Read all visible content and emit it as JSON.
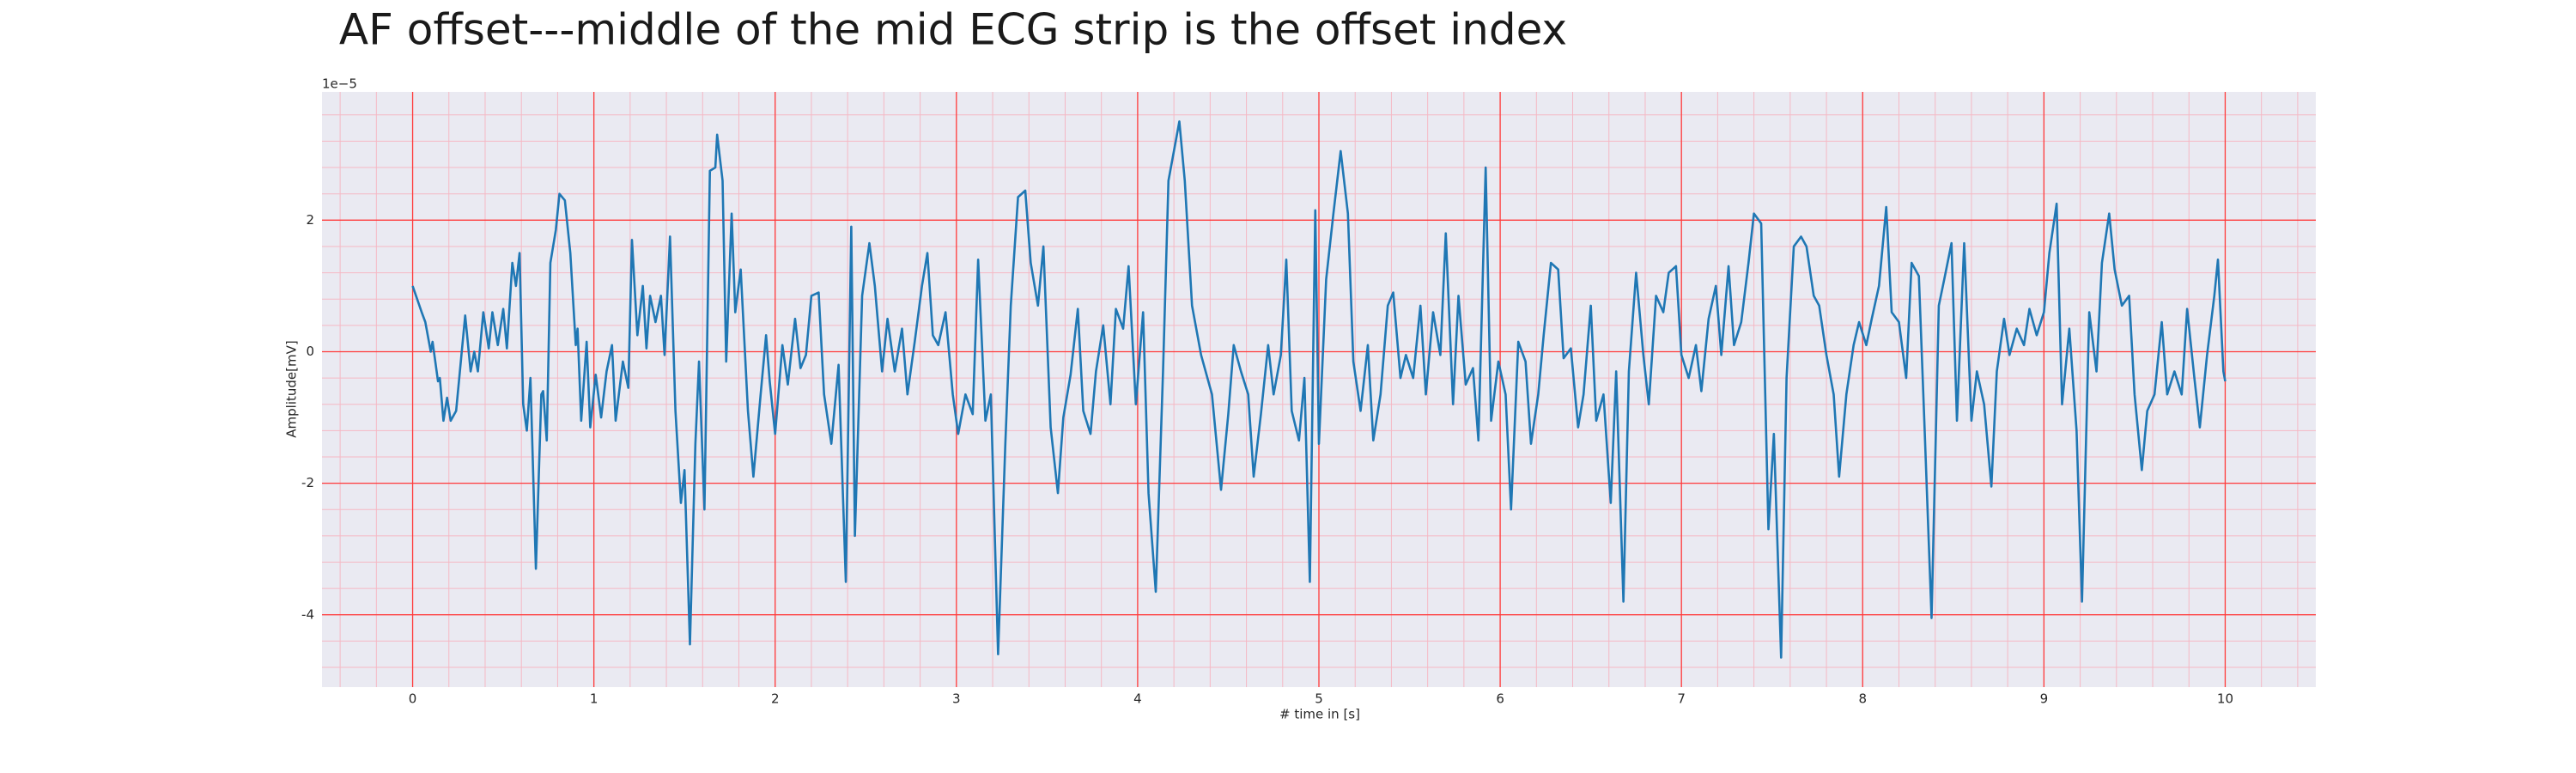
{
  "chart_data": {
    "type": "line",
    "title": "AF offset---middle of the mid ECG strip is the offset index",
    "x_label": "# time in [s]",
    "y_label": "Amplitude[mV]",
    "y_offset_label": "1e−5",
    "xlim": [
      -0.5,
      10.5
    ],
    "ylim": [
      -5.1,
      3.95
    ],
    "xticks": [
      0,
      1,
      2,
      3,
      4,
      5,
      6,
      7,
      8,
      9,
      10
    ],
    "yticks": [
      -4,
      -2,
      0,
      2
    ],
    "grid": true,
    "minor_grid": {
      "x_step": 0.2,
      "y_step": 0.4
    },
    "grid_color": "#ff3b3b",
    "minor_grid_color": "#f5b8c4",
    "background": "#eaeaf2",
    "x": [
      0.0,
      0.05,
      0.07,
      0.1,
      0.11,
      0.14,
      0.15,
      0.17,
      0.19,
      0.21,
      0.24,
      0.29,
      0.32,
      0.34,
      0.36,
      0.39,
      0.42,
      0.44,
      0.47,
      0.5,
      0.52,
      0.55,
      0.57,
      0.59,
      0.61,
      0.63,
      0.65,
      0.68,
      0.71,
      0.72,
      0.74,
      0.76,
      0.79,
      0.81,
      0.84,
      0.87,
      0.9,
      0.91,
      0.93,
      0.96,
      0.98,
      1.01,
      1.04,
      1.07,
      1.1,
      1.12,
      1.16,
      1.19,
      1.21,
      1.24,
      1.27,
      1.29,
      1.31,
      1.34,
      1.37,
      1.39,
      1.42,
      1.45,
      1.48,
      1.5,
      1.53,
      1.56,
      1.58,
      1.61,
      1.64,
      1.67,
      1.68,
      1.71,
      1.73,
      1.76,
      1.78,
      1.81,
      1.85,
      1.88,
      1.92,
      1.95,
      1.97,
      2.0,
      2.04,
      2.07,
      2.11,
      2.14,
      2.17,
      2.2,
      2.24,
      2.27,
      2.31,
      2.35,
      2.39,
      2.42,
      2.44,
      2.48,
      2.52,
      2.55,
      2.59,
      2.62,
      2.66,
      2.7,
      2.73,
      2.77,
      2.81,
      2.84,
      2.87,
      2.9,
      2.94,
      2.98,
      3.01,
      3.05,
      3.09,
      3.12,
      3.16,
      3.19,
      3.23,
      3.27,
      3.3,
      3.34,
      3.38,
      3.41,
      3.45,
      3.48,
      3.52,
      3.56,
      3.59,
      3.63,
      3.67,
      3.7,
      3.74,
      3.77,
      3.81,
      3.85,
      3.88,
      3.92,
      3.95,
      3.99,
      4.03,
      4.06,
      4.1,
      4.14,
      4.17,
      4.23,
      4.26,
      4.3,
      4.35,
      4.41,
      4.46,
      4.5,
      4.53,
      4.57,
      4.61,
      4.64,
      4.68,
      4.72,
      4.75,
      4.79,
      4.82,
      4.85,
      4.89,
      4.92,
      4.95,
      4.98,
      5.0,
      5.04,
      5.08,
      5.12,
      5.16,
      5.19,
      5.23,
      5.27,
      5.3,
      5.34,
      5.38,
      5.41,
      5.45,
      5.48,
      5.52,
      5.56,
      5.59,
      5.63,
      5.67,
      5.7,
      5.74,
      5.77,
      5.81,
      5.85,
      5.88,
      5.92,
      5.95,
      5.99,
      6.03,
      6.06,
      6.1,
      6.14,
      6.17,
      6.21,
      6.24,
      6.28,
      6.32,
      6.35,
      6.39,
      6.43,
      6.46,
      6.5,
      6.53,
      6.57,
      6.61,
      6.64,
      6.68,
      6.71,
      6.75,
      6.79,
      6.82,
      6.86,
      6.9,
      6.93,
      6.97,
      7.0,
      7.04,
      7.08,
      7.11,
      7.15,
      7.19,
      7.22,
      7.26,
      7.29,
      7.33,
      7.37,
      7.4,
      7.44,
      7.48,
      7.51,
      7.55,
      7.58,
      7.62,
      7.66,
      7.69,
      7.73,
      7.76,
      7.8,
      7.84,
      7.87,
      7.91,
      7.95,
      7.98,
      8.02,
      8.05,
      8.09,
      8.13,
      8.16,
      8.2,
      8.24,
      8.27,
      8.31,
      8.34,
      8.38,
      8.42,
      8.45,
      8.49,
      8.52,
      8.56,
      8.6,
      8.63,
      8.67,
      8.71,
      8.74,
      8.78,
      8.81,
      8.85,
      8.89,
      8.92,
      8.96,
      9.0,
      9.03,
      9.07,
      9.1,
      9.14,
      9.18,
      9.21,
      9.25,
      9.29,
      9.32,
      9.36,
      9.39,
      9.43,
      9.47,
      9.5,
      9.54,
      9.57,
      9.61,
      9.65,
      9.68,
      9.72,
      9.76,
      9.79,
      9.83,
      9.86,
      9.9,
      9.94,
      9.96,
      9.99,
      10.0
    ],
    "series": [
      {
        "color": "#1f77b4",
        "values": [
          1.0,
          0.6,
          0.45,
          0.0,
          0.15,
          -0.45,
          -0.4,
          -1.05,
          -0.7,
          -1.05,
          -0.9,
          0.55,
          -0.3,
          0.0,
          -0.3,
          0.6,
          0.05,
          0.6,
          0.1,
          0.65,
          0.05,
          1.35,
          1.0,
          1.5,
          -0.8,
          -1.2,
          -0.4,
          -3.3,
          -0.65,
          -0.6,
          -1.35,
          1.35,
          1.85,
          2.4,
          2.3,
          1.5,
          0.1,
          0.35,
          -1.05,
          0.15,
          -1.15,
          -0.35,
          -1.0,
          -0.3,
          0.1,
          -1.05,
          -0.15,
          -0.55,
          1.7,
          0.25,
          1.0,
          0.05,
          0.85,
          0.45,
          0.85,
          -0.05,
          1.75,
          -0.9,
          -2.3,
          -1.8,
          -4.45,
          -1.4,
          -0.15,
          -2.4,
          2.75,
          2.8,
          3.3,
          2.6,
          -0.15,
          2.1,
          0.6,
          1.25,
          -0.9,
          -1.9,
          -0.65,
          0.25,
          -0.45,
          -1.25,
          0.1,
          -0.5,
          0.5,
          -0.25,
          -0.05,
          0.85,
          0.9,
          -0.65,
          -1.4,
          -0.2,
          -3.5,
          1.9,
          -2.8,
          0.85,
          1.65,
          1.0,
          -0.3,
          0.5,
          -0.3,
          0.35,
          -0.65,
          0.15,
          1.0,
          1.5,
          0.25,
          0.1,
          0.6,
          -0.65,
          -1.25,
          -0.65,
          -0.95,
          1.4,
          -1.05,
          -0.65,
          -4.6,
          -1.4,
          0.7,
          2.35,
          2.45,
          1.35,
          0.7,
          1.6,
          -1.15,
          -2.15,
          -1.0,
          -0.35,
          0.65,
          -0.9,
          -1.25,
          -0.3,
          0.4,
          -0.8,
          0.65,
          0.35,
          1.3,
          -0.8,
          0.6,
          -2.15,
          -3.65,
          -0.3,
          2.6,
          3.5,
          2.6,
          0.7,
          -0.05,
          -0.65,
          -2.1,
          -0.95,
          0.1,
          -0.3,
          -0.65,
          -1.9,
          -0.95,
          0.1,
          -0.65,
          -0.05,
          1.4,
          -0.9,
          -1.35,
          -0.4,
          -3.5,
          2.15,
          -1.4,
          1.1,
          2.1,
          3.05,
          2.1,
          -0.15,
          -0.9,
          0.1,
          -1.35,
          -0.65,
          0.7,
          0.9,
          -0.4,
          -0.05,
          -0.4,
          0.7,
          -0.65,
          0.6,
          -0.05,
          1.8,
          -0.8,
          0.85,
          -0.5,
          -0.25,
          -1.35,
          2.8,
          -1.05,
          -0.15,
          -0.65,
          -2.4,
          0.15,
          -0.15,
          -1.4,
          -0.65,
          0.25,
          1.35,
          1.25,
          -0.1,
          0.05,
          -1.15,
          -0.65,
          0.7,
          -1.05,
          -0.65,
          -2.3,
          -0.3,
          -3.8,
          -0.3,
          1.2,
          -0.05,
          -0.8,
          0.85,
          0.6,
          1.2,
          1.3,
          -0.05,
          -0.4,
          0.1,
          -0.6,
          0.5,
          1.0,
          -0.05,
          1.3,
          0.1,
          0.45,
          1.35,
          2.1,
          1.95,
          -2.7,
          -1.25,
          -4.65,
          -0.4,
          1.6,
          1.75,
          1.6,
          0.85,
          0.7,
          -0.05,
          -0.65,
          -1.9,
          -0.65,
          0.1,
          0.45,
          0.1,
          0.5,
          1.0,
          2.2,
          0.6,
          0.45,
          -0.4,
          1.35,
          1.15,
          -1.05,
          -4.05,
          0.7,
          1.1,
          1.65,
          -1.05,
          1.65,
          -1.05,
          -0.3,
          -0.8,
          -2.05,
          -0.3,
          0.5,
          -0.05,
          0.35,
          0.1,
          0.65,
          0.25,
          0.6,
          1.5,
          2.25,
          -0.8,
          0.35,
          -1.2,
          -3.8,
          0.6,
          -0.3,
          1.35,
          2.1,
          1.25,
          0.7,
          0.85,
          -0.65,
          -1.8,
          -0.9,
          -0.65,
          0.45,
          -0.65,
          -0.3,
          -0.65,
          0.65,
          -0.4,
          -1.15,
          -0.05,
          0.85,
          1.4,
          -0.3,
          -0.45
        ]
      }
    ]
  }
}
